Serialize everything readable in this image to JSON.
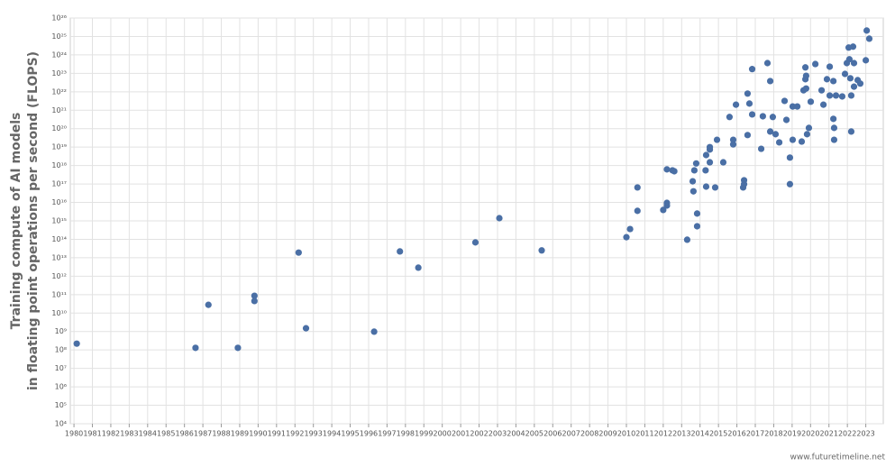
{
  "chart_data": {
    "type": "scatter",
    "y_label": [
      "Training compute of AI models",
      "in floating point operations per second (FLOPS)"
    ],
    "source": "www.futuretimeline.net",
    "color": "#4a6fa5",
    "grid": true,
    "yscale": "log",
    "xlim": [
      1979.8,
      2023.95
    ],
    "ylim": [
      10000,
      1e+26
    ],
    "xticks": [
      1980,
      1981,
      1982,
      1983,
      1984,
      1985,
      1986,
      1987,
      1988,
      1989,
      1990,
      1991,
      1992,
      1993,
      1994,
      1995,
      1996,
      1997,
      1998,
      1999,
      2000,
      2001,
      2002,
      2003,
      2004,
      2005,
      2006,
      2007,
      2008,
      2009,
      2010,
      2011,
      2012,
      2013,
      2014,
      2015,
      2016,
      2017,
      2018,
      2019,
      2020,
      2021,
      2022,
      2023
    ],
    "yticks": [
      {
        "value": 10000,
        "label": "10⁴"
      },
      {
        "value": 100000.0,
        "label": "10⁵"
      },
      {
        "value": 1000000.0,
        "label": "10⁶"
      },
      {
        "value": 10000000.0,
        "label": "10⁷"
      },
      {
        "value": 100000000.0,
        "label": "10⁸"
      },
      {
        "value": 1000000000.0,
        "label": "10⁹"
      },
      {
        "value": 10000000000.0,
        "label": "10¹⁰"
      },
      {
        "value": 100000000000.0,
        "label": "10¹¹"
      },
      {
        "value": 1000000000000.0,
        "label": "10¹²"
      },
      {
        "value": 10000000000000.0,
        "label": "10¹³"
      },
      {
        "value": 100000000000000.0,
        "label": "10¹⁴"
      },
      {
        "value": 1000000000000000.0,
        "label": "10¹⁵"
      },
      {
        "value": 1e+16,
        "label": "10¹⁶"
      },
      {
        "value": 1e+17,
        "label": "10¹⁷"
      },
      {
        "value": 1e+18,
        "label": "10¹⁸"
      },
      {
        "value": 1e+19,
        "label": "10¹⁹"
      },
      {
        "value": 1e+20,
        "label": "10²⁰"
      },
      {
        "value": 1e+21,
        "label": "10²¹"
      },
      {
        "value": 1e+22,
        "label": "10²²"
      },
      {
        "value": 1e+23,
        "label": "10²³"
      },
      {
        "value": 1e+24,
        "label": "10²⁴"
      },
      {
        "value": 1e+25,
        "label": "10²⁵"
      },
      {
        "value": 1e+26,
        "label": "10²⁶"
      }
    ],
    "x": [
      1980.15,
      1986.6,
      1987.3,
      1988.9,
      1989.8,
      1989.8,
      1992.2,
      1992.6,
      1996.3,
      1997.7,
      1998.7,
      2001.8,
      2003.1,
      2005.4,
      2010.0,
      2010.2,
      2010.6,
      2010.6,
      2012.0,
      2012.2,
      2012.2,
      2012.2,
      2012.5,
      2012.6,
      2013.3,
      2013.6,
      2013.64,
      2013.69,
      2013.79,
      2013.84,
      2013.84,
      2014.3,
      2014.33,
      2014.33,
      2014.53,
      2014.53,
      2014.53,
      2014.82,
      2014.92,
      2015.26,
      2015.6,
      2015.8,
      2015.8,
      2015.95,
      2016.34,
      2016.39,
      2016.39,
      2016.58,
      2016.58,
      2016.68,
      2016.83,
      2016.83,
      2017.32,
      2017.41,
      2017.66,
      2017.81,
      2017.81,
      2017.95,
      2018.1,
      2018.3,
      2018.59,
      2018.69,
      2018.88,
      2018.88,
      2019.03,
      2019.03,
      2019.28,
      2019.52,
      2019.62,
      2019.72,
      2019.72,
      2019.76,
      2019.76,
      2019.81,
      2019.91,
      2020.01,
      2020.26,
      2020.6,
      2020.7,
      2020.89,
      2021.04,
      2021.04,
      2021.24,
      2021.24,
      2021.28,
      2021.28,
      2021.38,
      2021.72,
      2021.87,
      2021.97,
      2022.07,
      2022.11,
      2022.16,
      2022.21,
      2022.21,
      2022.31,
      2022.36,
      2022.36,
      2022.56,
      2022.7,
      2023.0,
      2023.05,
      2023.19
    ],
    "values": [
      220000000.0,
      130000000.0,
      28000000000.0,
      130000000.0,
      87000000000.0,
      45000000000.0,
      19000000000000.0,
      1500000000.0,
      980000000.0,
      22000000000000.0,
      2900000000000.0,
      68000000000000.0,
      1400000000000000.0,
      25000000000000.0,
      130000000000000.0,
      360000000000000.0,
      6.5e+16,
      3500000000000000.0,
      3900000000000000.0,
      6800000000000000.0,
      9500000000000000.0,
      6.2e+17,
      5.5e+17,
      4.9e+17,
      95000000000000.0,
      1.4e+17,
      4e+16,
      5.5e+17,
      1.3e+18,
      2500000000000000.0,
      510000000000000.0,
      5.5e+17,
      3.7e+18,
      7.2e+16,
      1.5e+18,
      7.4e+18,
      1e+19,
      6.5e+16,
      2.5e+19,
      1.5e+18,
      4.3e+20,
      1.4e+19,
      2.5e+19,
      2e+21,
      6.5e+16,
      9.8e+16,
      1.6e+17,
      4.5e+19,
      8e+21,
      2.3e+21,
      5.9e+20,
      1.7e+23,
      8.1e+18,
      4.7e+20,
      3.6e+23,
      3.8e+22,
      7e+19,
      4.3e+20,
      5e+19,
      1.8e+19,
      3.2e+21,
      3e+20,
      2.7e+18,
      9.8e+16,
      2.5e+19,
      1.6e+21,
      1.6e+21,
      2e+19,
      1.2e+22,
      2.1e+23,
      4.8e+22,
      7.4e+22,
      1.5e+22,
      5e+19,
      1.1e+20,
      2.9e+21,
      3.2e+23,
      1.2e+22,
      2e+21,
      4.8e+22,
      2.3e+23,
      6.3e+21,
      3.4e+20,
      3.8e+22,
      2.5e+19,
      1.1e+20,
      6.3e+21,
      5.6e+21,
      9.3e+22,
      3.6e+23,
      2.5e+24,
      5.8e+23,
      5.4e+22,
      7e+19,
      6.3e+21,
      2.8e+24,
      3.6e+23,
      1.9e+22,
      4.3e+22,
      2.8e+22,
      5.1e+23,
      2.1e+25,
      7.6e+24
    ]
  }
}
